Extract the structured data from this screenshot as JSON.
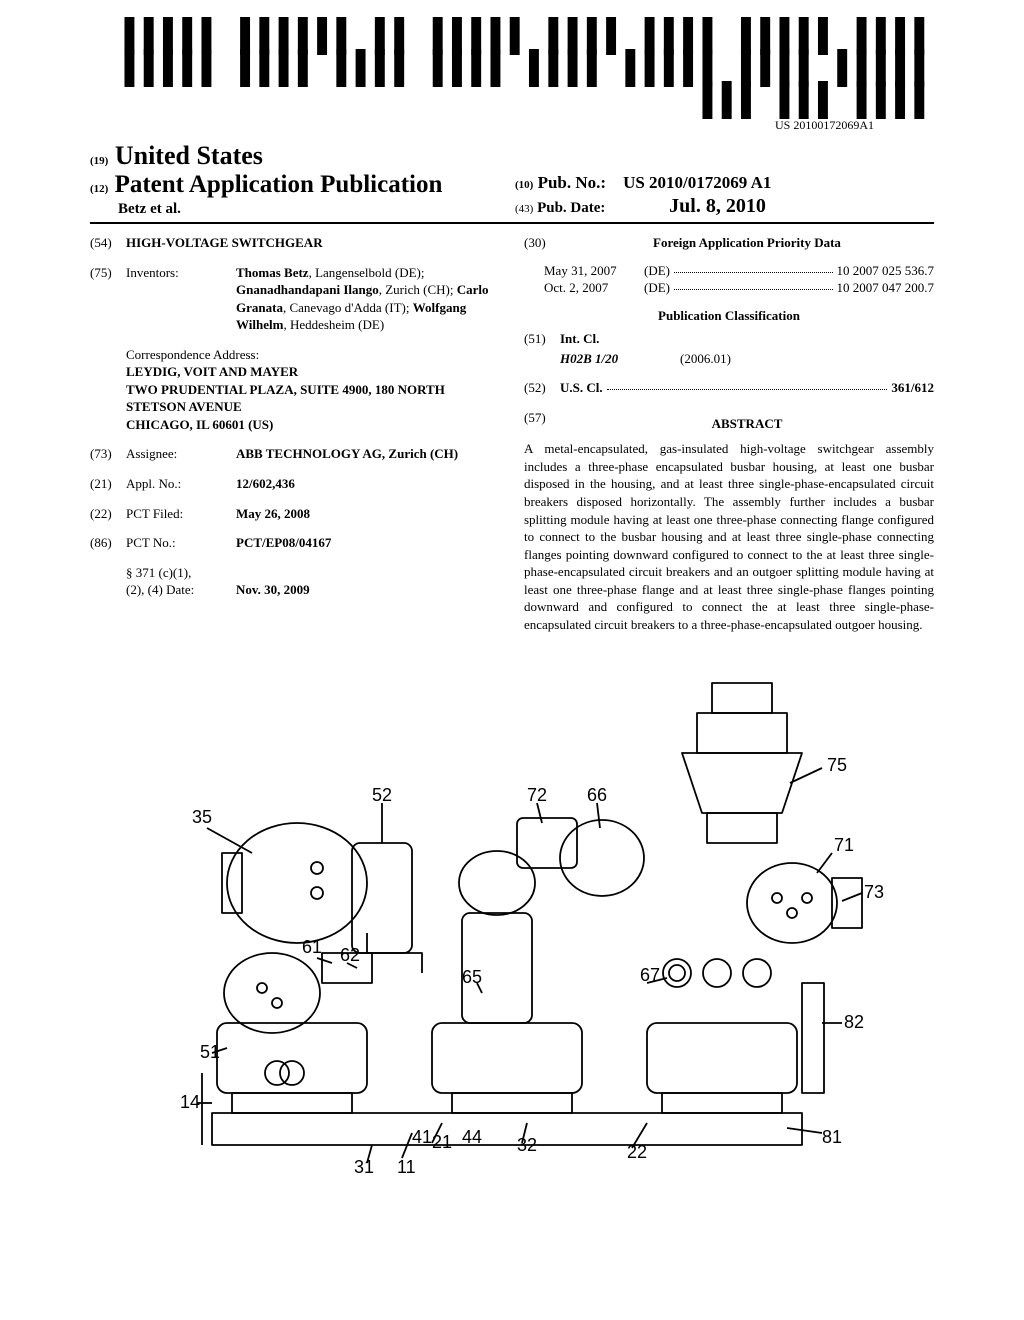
{
  "barcode_number": "US 20100172069A1",
  "header": {
    "country_code": "(19)",
    "country": "United States",
    "doc_code": "(12)",
    "doc_type": "Patent Application Publication",
    "authors": "Betz et al.",
    "pubno_code": "(10)",
    "pubno_label": "Pub. No.:",
    "pubno": "US 2010/0172069 A1",
    "pubdate_code": "(43)",
    "pubdate_label": "Pub. Date:",
    "pubdate": "Jul. 8, 2010"
  },
  "left": {
    "title_code": "(54)",
    "title": "HIGH-VOLTAGE SWITCHGEAR",
    "inventors_code": "(75)",
    "inventors_label": "Inventors:",
    "inventors": "Thomas Betz, Langenselbold (DE); Gnanadhandapani Ilango, Zurich (CH); Carlo Granata, Canevago d'Adda (IT); Wolfgang Wilhelm, Heddesheim (DE)",
    "corr_label": "Correspondence Address:",
    "corr_lines": [
      "LEYDIG, VOIT AND MAYER",
      "TWO PRUDENTIAL PLAZA, SUITE 4900, 180 NORTH STETSON AVENUE",
      "CHICAGO, IL 60601 (US)"
    ],
    "assignee_code": "(73)",
    "assignee_label": "Assignee:",
    "assignee": "ABB TECHNOLOGY AG, Zurich (CH)",
    "applno_code": "(21)",
    "applno_label": "Appl. No.:",
    "applno": "12/602,436",
    "pctfiled_code": "(22)",
    "pctfiled_label": "PCT Filed:",
    "pctfiled": "May 26, 2008",
    "pctno_code": "(86)",
    "pctno_label": "PCT No.:",
    "pctno": "PCT/EP08/04167",
    "s371_label": "§ 371 (c)(1),",
    "s371_sub": "(2), (4) Date:",
    "s371_date": "Nov. 30, 2009"
  },
  "right": {
    "foreign_code": "(30)",
    "foreign_title": "Foreign Application Priority Data",
    "foreign": [
      {
        "date": "May 31, 2007",
        "cc": "(DE)",
        "num": "10 2007 025 536.7"
      },
      {
        "date": "Oct. 2, 2007",
        "cc": "(DE)",
        "num": "10 2007 047 200.7"
      }
    ],
    "pubclass_title": "Publication Classification",
    "intcl_code": "(51)",
    "intcl_label": "Int. Cl.",
    "intcl_class": "H02B 1/20",
    "intcl_ver": "(2006.01)",
    "uscl_code": "(52)",
    "uscl_label": "U.S. Cl.",
    "uscl_val": "361/612",
    "abstract_code": "(57)",
    "abstract_title": "ABSTRACT",
    "abstract": "A metal-encapsulated, gas-insulated high-voltage switchgear assembly includes a three-phase encapsulated busbar housing, at least one busbar disposed in the housing, and at least three single-phase-encapsulated circuit breakers disposed horizontally. The assembly further includes a busbar splitting module having at least one three-phase connecting flange configured to connect to the busbar housing and at least three single-phase connecting flanges pointing downward configured to connect to the at least three single-phase-encapsulated circuit breakers and an outgoer splitting module having at least one three-phase flange and at least three single-phase flanges pointing downward and configured to connect the at least three single-phase-encapsulated circuit breakers to a three-phase-encapsulated outgoer housing."
  },
  "figure": {
    "labels": [
      "35",
      "52",
      "72",
      "66",
      "75",
      "71",
      "73",
      "61",
      "62",
      "65",
      "67",
      "82",
      "51",
      "14",
      "41",
      "21",
      "44",
      "32",
      "22",
      "81",
      "31",
      "11"
    ],
    "stroke": "#000000",
    "fill": "#ffffff",
    "stroke_width": 1.8
  }
}
